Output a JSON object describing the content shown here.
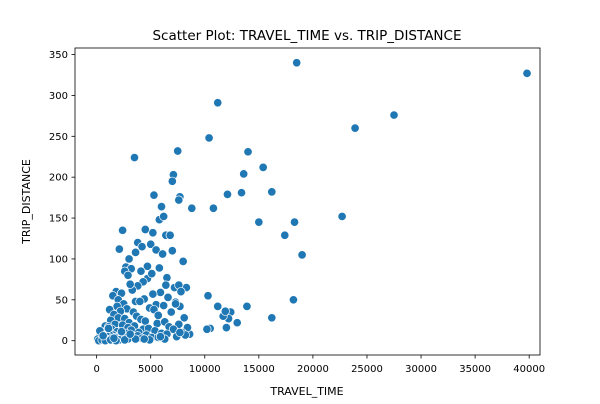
{
  "chart_data": {
    "type": "scatter",
    "title": "Scatter Plot: TRAVEL_TIME vs. TRIP_DISTANCE",
    "xlabel": "TRAVEL_TIME",
    "ylabel": "TRIP_DISTANCE",
    "xlim": [
      -2000,
      41000
    ],
    "ylim": [
      -17.5,
      358
    ],
    "xticks": [
      0,
      5000,
      10000,
      15000,
      20000,
      25000,
      30000,
      35000,
      40000
    ],
    "yticks": [
      0,
      50,
      100,
      150,
      200,
      250,
      300,
      350
    ],
    "grid": false,
    "marker_color": "#1f77b4",
    "marker_edge_color": "#ffffff",
    "series": [
      {
        "x": [
          39800,
          18500,
          27500,
          23900,
          11200,
          10400,
          7500,
          3500,
          14000,
          15400,
          16200,
          7100,
          13600,
          7000,
          7700,
          5300,
          6000,
          8800,
          13400,
          12100,
          5800,
          6200,
          7600,
          15000,
          18300,
          22700,
          10800,
          17400,
          19000,
          8300,
          7200,
          7300,
          7700,
          7600,
          10300,
          13900,
          12400,
          12200,
          18200,
          11200,
          11700,
          10500,
          10200,
          16200,
          12000,
          13000,
          11900,
          8600,
          4500,
          5200,
          3800,
          2400,
          2100,
          6400,
          5000,
          4200,
          6800,
          3000,
          3600,
          5500,
          6100,
          7000,
          8000,
          4700,
          2700,
          3200,
          5800,
          6500,
          4100,
          2600,
          1800,
          4700,
          5100,
          4300,
          3800,
          6400,
          2900,
          2300,
          3300,
          5900,
          7800,
          3100,
          1500,
          2000,
          5200,
          4400,
          3600,
          6600,
          7300,
          2500,
          1900,
          4000,
          5500,
          1200,
          2800,
          4900,
          6200,
          3400,
          2200,
          1600,
          3700,
          5300,
          6900,
          2000,
          1300,
          2600,
          4100,
          5700,
          8100,
          1700,
          3000,
          4500,
          800,
          1100,
          2400,
          3500,
          5600,
          6300,
          7600,
          900,
          1400,
          2900,
          4300,
          600,
          1000,
          1900,
          3200,
          4800,
          6700,
          500,
          1500,
          2700,
          3900,
          5400,
          7100,
          8400,
          300,
          700,
          1200,
          2200,
          3300,
          4600,
          6000,
          7900,
          200,
          600,
          1000,
          1700,
          2500,
          3800,
          5100,
          6500,
          8200,
          100,
          400,
          900,
          1400,
          2100,
          2900,
          4200,
          5700,
          7400,
          200,
          500,
          800,
          1300,
          1800,
          2600,
          3600,
          4900,
          6300,
          300,
          600,
          1100,
          1600,
          2300,
          3100,
          4400,
          5900,
          7700
        ],
        "y": [
          327,
          340,
          276,
          260,
          291,
          248,
          232,
          224,
          231,
          212,
          182,
          203,
          204,
          195,
          176,
          178,
          164,
          162,
          181,
          179,
          148,
          152,
          172,
          145,
          145,
          152,
          162,
          129,
          105,
          65,
          65,
          47,
          42,
          68,
          55,
          42,
          35,
          27,
          50,
          42,
          30,
          15,
          14,
          28,
          16,
          22,
          36,
          8,
          136,
          132,
          120,
          135,
          112,
          129,
          118,
          115,
          129,
          100,
          108,
          111,
          106,
          110,
          97,
          91,
          90,
          88,
          89,
          77,
          85,
          85,
          60,
          76,
          82,
          72,
          67,
          68,
          80,
          58,
          62,
          59,
          60,
          69,
          55,
          50,
          57,
          51,
          48,
          53,
          45,
          45,
          42,
          48,
          44,
          38,
          39,
          40,
          43,
          35,
          36,
          32,
          30,
          38,
          35,
          28,
          25,
          27,
          26,
          31,
          28,
          20,
          22,
          24,
          18,
          17,
          19,
          18,
          21,
          23,
          20,
          12,
          14,
          16,
          14,
          10,
          9,
          11,
          13,
          15,
          17,
          8,
          7,
          9,
          10,
          12,
          14,
          16,
          5,
          6,
          7,
          8,
          6,
          7,
          9,
          10,
          4,
          3,
          5,
          4,
          5,
          6,
          4,
          8,
          7,
          2,
          1,
          2,
          3,
          1,
          2,
          3,
          4,
          5,
          0,
          1,
          0,
          1,
          0,
          1,
          2,
          1,
          2,
          12,
          6,
          15,
          3,
          11,
          8,
          2,
          5,
          10
        ]
      }
    ]
  }
}
